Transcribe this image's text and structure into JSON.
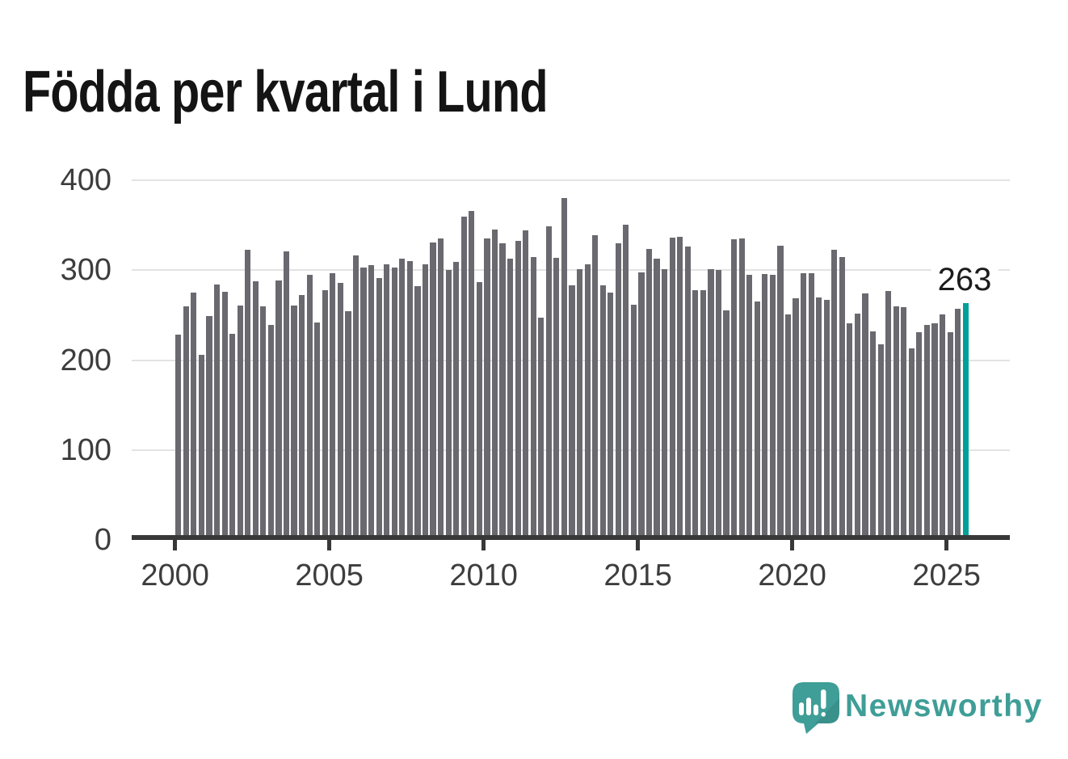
{
  "title": "Födda per kvartal i Lund",
  "annotation": {
    "value_label": "263"
  },
  "y_axis": {
    "ticks": [
      "400",
      "300",
      "200",
      "100",
      "0"
    ]
  },
  "x_axis": {
    "ticks": [
      "2000",
      "2005",
      "2010",
      "2015",
      "2020",
      "2025"
    ]
  },
  "branding": {
    "name": "Newsworthy",
    "icon": "newsworthy-speech-bubble-chart-icon"
  },
  "colors": {
    "bar": "#69696f",
    "highlight": "#00a099",
    "axis": "#383838",
    "gridline": "#e3e3e3",
    "tick_text": "#3d3d3d",
    "title_text": "#141414",
    "annotation_text": "#1c1c1c",
    "brand_teal": "#3f9e97"
  },
  "chart_data": {
    "type": "bar",
    "title": "Födda per kvartal i Lund",
    "xlabel": "",
    "ylabel": "",
    "frequency": "quarterly",
    "x_start": "2000 Q1",
    "x_end": "2025 Q3",
    "ylim": [
      0,
      400
    ],
    "yticks": [
      0,
      100,
      200,
      300,
      400
    ],
    "xticks_years": [
      2000,
      2005,
      2010,
      2015,
      2020,
      2025
    ],
    "grid": "horizontal",
    "legend": "none",
    "highlight_index": 102,
    "highlight_label": "263",
    "categories": [
      "2000 Q1",
      "2000 Q2",
      "2000 Q3",
      "2000 Q4",
      "2001 Q1",
      "2001 Q2",
      "2001 Q3",
      "2001 Q4",
      "2002 Q1",
      "2002 Q2",
      "2002 Q3",
      "2002 Q4",
      "2003 Q1",
      "2003 Q2",
      "2003 Q3",
      "2003 Q4",
      "2004 Q1",
      "2004 Q2",
      "2004 Q3",
      "2004 Q4",
      "2005 Q1",
      "2005 Q2",
      "2005 Q3",
      "2005 Q4",
      "2006 Q1",
      "2006 Q2",
      "2006 Q3",
      "2006 Q4",
      "2007 Q1",
      "2007 Q2",
      "2007 Q3",
      "2007 Q4",
      "2008 Q1",
      "2008 Q2",
      "2008 Q3",
      "2008 Q4",
      "2009 Q1",
      "2009 Q2",
      "2009 Q3",
      "2009 Q4",
      "2010 Q1",
      "2010 Q2",
      "2010 Q3",
      "2010 Q4",
      "2011 Q1",
      "2011 Q2",
      "2011 Q3",
      "2011 Q4",
      "2012 Q1",
      "2012 Q2",
      "2012 Q3",
      "2012 Q4",
      "2013 Q1",
      "2013 Q2",
      "2013 Q3",
      "2013 Q4",
      "2014 Q1",
      "2014 Q2",
      "2014 Q3",
      "2014 Q4",
      "2015 Q1",
      "2015 Q2",
      "2015 Q3",
      "2015 Q4",
      "2016 Q1",
      "2016 Q2",
      "2016 Q3",
      "2016 Q4",
      "2017 Q1",
      "2017 Q2",
      "2017 Q3",
      "2017 Q4",
      "2018 Q1",
      "2018 Q2",
      "2018 Q3",
      "2018 Q4",
      "2019 Q1",
      "2019 Q2",
      "2019 Q3",
      "2019 Q4",
      "2020 Q1",
      "2020 Q2",
      "2020 Q3",
      "2020 Q4",
      "2021 Q1",
      "2021 Q2",
      "2021 Q3",
      "2021 Q4",
      "2022 Q1",
      "2022 Q2",
      "2022 Q3",
      "2022 Q4",
      "2023 Q1",
      "2023 Q2",
      "2023 Q3",
      "2023 Q4",
      "2024 Q1",
      "2024 Q2",
      "2024 Q3",
      "2024 Q4",
      "2025 Q1",
      "2025 Q2",
      "2025 Q3"
    ],
    "values": [
      228,
      260,
      275,
      206,
      249,
      284,
      276,
      229,
      261,
      323,
      288,
      260,
      239,
      289,
      321,
      261,
      272,
      295,
      242,
      278,
      297,
      286,
      254,
      316,
      303,
      306,
      291,
      307,
      303,
      313,
      310,
      282,
      307,
      331,
      335,
      300,
      309,
      360,
      366,
      287,
      335,
      345,
      330,
      313,
      333,
      344,
      315,
      247,
      349,
      314,
      380,
      283,
      301,
      307,
      339,
      283,
      275,
      330,
      351,
      262,
      298,
      324,
      313,
      301,
      336,
      337,
      326,
      278,
      278,
      301,
      300,
      255,
      334,
      335,
      295,
      265,
      296,
      295,
      327,
      251,
      269,
      297,
      297,
      270,
      267,
      323,
      315,
      241,
      252,
      274,
      232,
      218,
      277,
      260,
      259,
      213,
      231,
      239,
      241,
      251,
      231,
      257,
      263
    ]
  }
}
